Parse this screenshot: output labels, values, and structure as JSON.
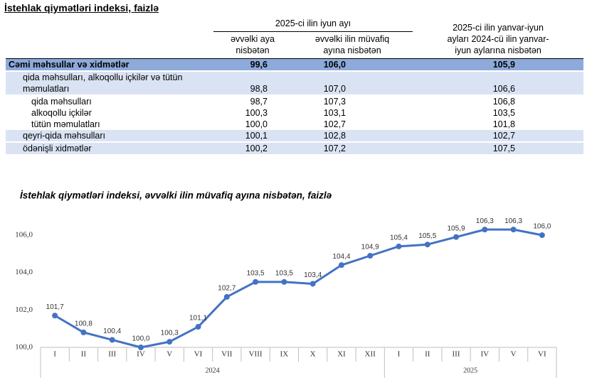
{
  "table": {
    "title": "İstehlak qiymətləri indeksi, faizlə",
    "header": {
      "group": "2025-ci ilin iyun ayı",
      "col1": "əvvəlki aya nisbətən",
      "col2": "əvvəlki ilin müvafiq ayına nisbətən",
      "col3": "2025-ci ilin yanvar-iyun ayları 2024-cü ilin yanvar-iyun aylarına nisbətən"
    },
    "rows": [
      [
        "Cəmi məhsullar və xidmətlər",
        "99,6",
        "106,0",
        "105,9"
      ],
      [
        "qida məhsulları, alkoqollu içkilər və tütün məmulatları",
        "98,8",
        "107,0",
        "106,6"
      ],
      [
        "qida məhsulları",
        "98,7",
        "107,3",
        "106,8"
      ],
      [
        "alkoqollu içkilər",
        "100,3",
        "103,1",
        "103,5"
      ],
      [
        "tütün məmulatları",
        "100,0",
        "102,7",
        "101,8"
      ],
      [
        "qeyri-qida məhsulları",
        "100,1",
        "102,8",
        "102,7"
      ],
      [
        "ödənişli xidmətlər",
        "100,2",
        "107,2",
        "107,5"
      ]
    ]
  },
  "chart_data": {
    "type": "line",
    "title": "İstehlak qiymətləri indeksi, əvvəlki ilin müvafiq ayına nisbətən, faizlə",
    "groups": [
      {
        "label": "2024",
        "categories": [
          "I",
          "II",
          "III",
          "IV",
          "V",
          "VI",
          "VII",
          "VIII",
          "IX",
          "X",
          "XI",
          "XII"
        ]
      },
      {
        "label": "2025",
        "categories": [
          "I",
          "II",
          "III",
          "IV",
          "V",
          "VI"
        ]
      }
    ],
    "values": [
      101.7,
      100.8,
      100.4,
      100.0,
      100.3,
      101.1,
      102.7,
      103.5,
      103.5,
      103.4,
      104.4,
      104.9,
      105.4,
      105.5,
      105.9,
      106.3,
      106.3,
      106.0
    ],
    "value_labels": [
      "101,7",
      "100,8",
      "100,4",
      "100,0",
      "100,3",
      "101,1",
      "102,7",
      "103,5",
      "103,5",
      "103,4",
      "104,4",
      "104,9",
      "105,4",
      "105,5",
      "105,9",
      "106,3",
      "106,3",
      "106,0"
    ],
    "color": "#4472c4",
    "ylim": [
      100,
      107
    ],
    "yticks": [
      {
        "value": 100,
        "label": "100,0"
      },
      {
        "value": 102,
        "label": "102,0"
      },
      {
        "value": 104,
        "label": "104,0"
      },
      {
        "value": 106,
        "label": "106,0"
      }
    ],
    "grid": false
  }
}
